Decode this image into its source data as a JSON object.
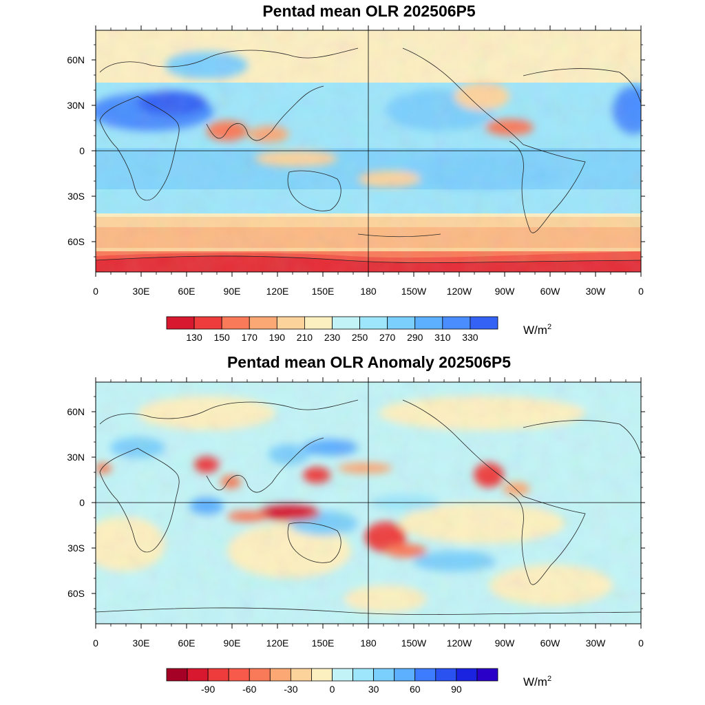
{
  "panels": [
    {
      "title": "Pentad mean OLR 202506P5",
      "lat_labels": [
        "60N",
        "30N",
        "0",
        "30S",
        "60S"
      ],
      "lon_labels": [
        "0",
        "30E",
        "60E",
        "90E",
        "120E",
        "150E",
        "180",
        "150W",
        "120W",
        "90W",
        "60W",
        "30W",
        "0"
      ],
      "colorbar": {
        "colors": [
          "#d7182f",
          "#ee3c3c",
          "#f97a59",
          "#fba875",
          "#fdd39c",
          "#fdf0c0",
          "#c2f4f7",
          "#9ee6fb",
          "#7bcffd",
          "#5dafff",
          "#4a8dff",
          "#3462f5"
        ],
        "labels": [
          "130",
          "150",
          "170",
          "190",
          "210",
          "230",
          "250",
          "270",
          "290",
          "310",
          "330"
        ],
        "unit_base": "W/m",
        "unit_exp": "2"
      }
    },
    {
      "title": "Pentad mean OLR Anomaly 202506P5",
      "lat_labels": [
        "60N",
        "30N",
        "0",
        "30S",
        "60S"
      ],
      "lon_labels": [
        "0",
        "30E",
        "60E",
        "90E",
        "120E",
        "150E",
        "180",
        "150W",
        "120W",
        "90W",
        "60W",
        "30W",
        "0"
      ],
      "colorbar": {
        "colors": [
          "#a50026",
          "#d7182f",
          "#ee3c3c",
          "#f75a4a",
          "#f97a59",
          "#fba875",
          "#fdd39c",
          "#fdf0c0",
          "#c2f4f7",
          "#9ee6fb",
          "#7bcffd",
          "#5dafff",
          "#3d7cff",
          "#2a52f0",
          "#1a24e0",
          "#2a00c8"
        ],
        "labels": [
          "-90",
          "-60",
          "-30",
          "0",
          "30",
          "60",
          "90"
        ],
        "unit_base": "W/m",
        "unit_exp": "2"
      }
    }
  ]
}
